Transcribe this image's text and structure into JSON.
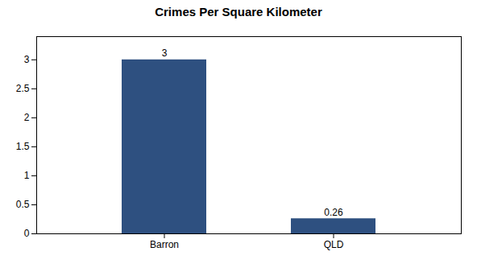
{
  "chart_data": {
    "type": "bar",
    "title": "Crimes Per Square Kilometer",
    "categories": [
      "Barron",
      "QLD"
    ],
    "values": [
      3,
      0.26
    ],
    "color": "#2e5080",
    "ylim": [
      0,
      3.4
    ],
    "yticks": [
      0,
      0.5,
      1,
      1.5,
      2,
      2.5,
      3
    ],
    "grid": false,
    "data_labels": true
  }
}
